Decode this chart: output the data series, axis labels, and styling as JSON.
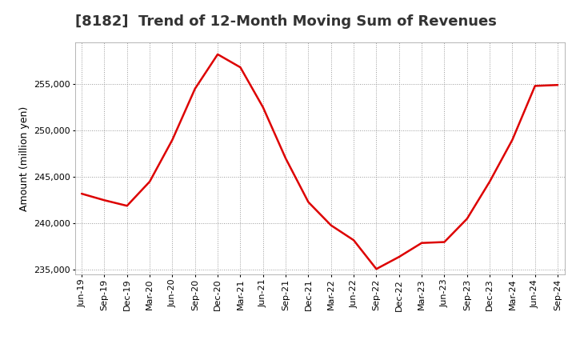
{
  "title": "[8182]  Trend of 12-Month Moving Sum of Revenues",
  "ylabel": "Amount (million yen)",
  "line_color": "#dd0000",
  "background_color": "#ffffff",
  "plot_bg_color": "#ffffff",
  "grid_color": "#999999",
  "x_labels": [
    "Jun-19",
    "Sep-19",
    "Dec-19",
    "Mar-20",
    "Jun-20",
    "Sep-20",
    "Dec-20",
    "Mar-21",
    "Jun-21",
    "Sep-21",
    "Dec-21",
    "Mar-22",
    "Jun-22",
    "Sep-22",
    "Dec-22",
    "Mar-23",
    "Jun-23",
    "Sep-23",
    "Dec-23",
    "Mar-24",
    "Jun-24",
    "Sep-24"
  ],
  "y_values": [
    243200,
    242500,
    241900,
    244500,
    249000,
    254500,
    258200,
    256800,
    252500,
    247000,
    242300,
    239800,
    238200,
    235100,
    236400,
    237900,
    238000,
    240500,
    244500,
    249000,
    254800,
    254900
  ],
  "ylim": [
    234500,
    259500
  ],
  "yticks": [
    235000,
    240000,
    245000,
    250000,
    255000
  ],
  "title_fontsize": 13,
  "axis_fontsize": 9,
  "tick_fontsize": 8,
  "title_color": "#333333"
}
